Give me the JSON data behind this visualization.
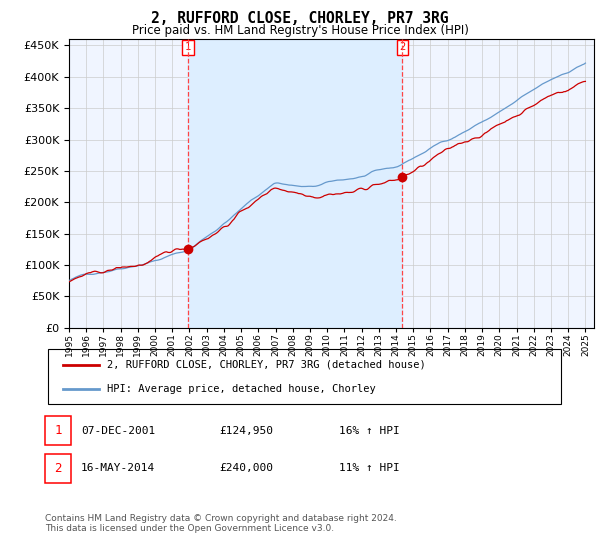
{
  "title": "2, RUFFORD CLOSE, CHORLEY, PR7 3RG",
  "subtitle": "Price paid vs. HM Land Registry's House Price Index (HPI)",
  "legend_line1": "2, RUFFORD CLOSE, CHORLEY, PR7 3RG (detached house)",
  "legend_line2": "HPI: Average price, detached house, Chorley",
  "transaction1_date": "07-DEC-2001",
  "transaction1_price": 124950,
  "transaction1_hpi": "16% ↑ HPI",
  "transaction2_date": "16-MAY-2014",
  "transaction2_price": 240000,
  "transaction2_hpi": "11% ↑ HPI",
  "footnote": "Contains HM Land Registry data © Crown copyright and database right 2024.\nThis data is licensed under the Open Government Licence v3.0.",
  "hpi_color": "#6699cc",
  "price_color": "#cc0000",
  "marker_color": "#cc0000",
  "vline_color": "#ff4444",
  "shading_color": "#ddeeff",
  "grid_color": "#cccccc",
  "ylim": [
    0,
    460000
  ],
  "start_year": 1995,
  "end_year": 2025,
  "transaction1_year": 2001.92,
  "transaction2_year": 2014.37
}
